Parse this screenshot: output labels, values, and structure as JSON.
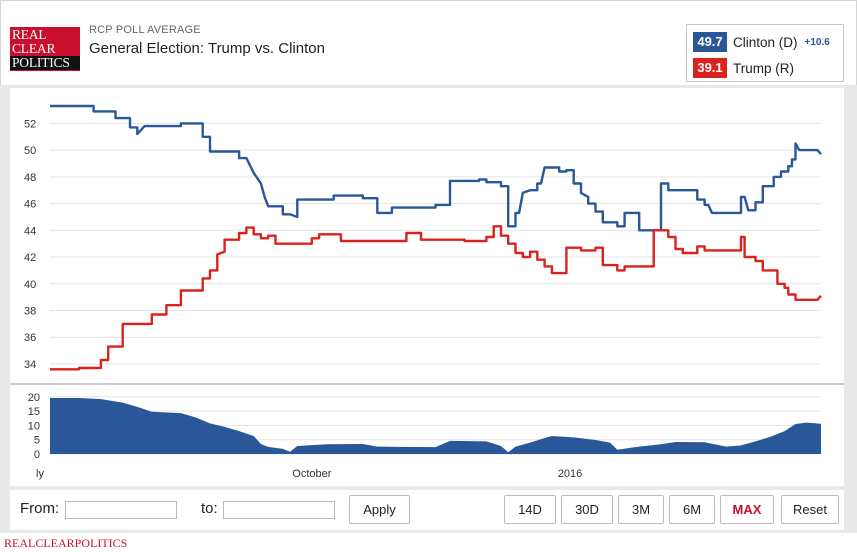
{
  "logo": {
    "line1": "REAL",
    "line2": "CLEAR",
    "line3": "POLITICS"
  },
  "header": {
    "kicker": "RCP POLL AVERAGE",
    "title": "General Election: Trump vs. Clinton"
  },
  "legend": {
    "clinton": {
      "value": "49.7",
      "name": "Clinton (D)",
      "spread": "+10.6",
      "color": "#2a5797"
    },
    "trump": {
      "value": "39.1",
      "name": "Trump (R)",
      "color": "#d9231c"
    }
  },
  "controls": {
    "from_label": "From:",
    "to_label": "to:",
    "from_value": "",
    "to_value": "",
    "apply_label": "Apply",
    "ranges": [
      "14D",
      "30D",
      "3M",
      "6M",
      "MAX"
    ],
    "active_range": "MAX",
    "reset_label": "Reset"
  },
  "footer": {
    "text": "REALCLEARPOLITICS"
  },
  "chart_data": {
    "type": "line",
    "upper": {
      "ylim": [
        32.8,
        54.2
      ],
      "yticks": [
        34,
        36,
        38,
        40,
        42,
        44,
        46,
        48,
        50,
        52
      ],
      "series": [
        {
          "name": "Clinton (D)",
          "color": "#2a5797",
          "points": [
            [
              0,
              53.3
            ],
            [
              6,
              53.3
            ],
            [
              6,
              52.9
            ],
            [
              9,
              52.9
            ],
            [
              9,
              52.4
            ],
            [
              11,
              52.4
            ],
            [
              11,
              51.7
            ],
            [
              12,
              51.7
            ],
            [
              12,
              51.2
            ],
            [
              13,
              51.8
            ],
            [
              18,
              51.8
            ],
            [
              18,
              52.0
            ],
            [
              21,
              52.0
            ],
            [
              21,
              51.0
            ],
            [
              22,
              51.0
            ],
            [
              22,
              49.9
            ],
            [
              26,
              49.9
            ],
            [
              26,
              49.4
            ],
            [
              27,
              49.4
            ],
            [
              28,
              48.3
            ],
            [
              29,
              47.5
            ],
            [
              29.5,
              46.5
            ],
            [
              30,
              45.8
            ],
            [
              32,
              45.8
            ],
            [
              32,
              45.2
            ],
            [
              33,
              45.2
            ],
            [
              34,
              45.0
            ],
            [
              34,
              46.3
            ],
            [
              39,
              46.3
            ],
            [
              39,
              46.6
            ],
            [
              43,
              46.6
            ],
            [
              43,
              46.4
            ],
            [
              45,
              46.4
            ],
            [
              45,
              45.3
            ],
            [
              47,
              45.3
            ],
            [
              47,
              45.7
            ],
            [
              53,
              45.7
            ],
            [
              53,
              45.9
            ],
            [
              55,
              45.9
            ],
            [
              55,
              47.7
            ],
            [
              59,
              47.7
            ],
            [
              59,
              47.8
            ],
            [
              60,
              47.8
            ],
            [
              60,
              47.6
            ],
            [
              62,
              47.6
            ],
            [
              62,
              47.3
            ],
            [
              63,
              47.3
            ],
            [
              63,
              44.3
            ],
            [
              64,
              44.3
            ],
            [
              64,
              45.3
            ],
            [
              64.5,
              45.3
            ],
            [
              65,
              46.8
            ],
            [
              66,
              47.0
            ],
            [
              67,
              47.0
            ],
            [
              67,
              47.5
            ],
            [
              67.5,
              47.5
            ],
            [
              68,
              48.7
            ],
            [
              70,
              48.7
            ],
            [
              70,
              48.4
            ],
            [
              71,
              48.4
            ],
            [
              71,
              48.5
            ],
            [
              72,
              48.5
            ],
            [
              72,
              47.5
            ],
            [
              73,
              47.5
            ],
            [
              73,
              46.8
            ],
            [
              74,
              46.5
            ],
            [
              74,
              46.0
            ],
            [
              75,
              46.0
            ],
            [
              75,
              45.4
            ],
            [
              76,
              45.4
            ],
            [
              76,
              44.6
            ],
            [
              78,
              44.6
            ],
            [
              78,
              44.3
            ],
            [
              79,
              44.3
            ],
            [
              79,
              45.3
            ],
            [
              81,
              45.3
            ],
            [
              81,
              44.0
            ],
            [
              84,
              44.0
            ],
            [
              84,
              47.5
            ],
            [
              85,
              47.5
            ],
            [
              85,
              47.0
            ],
            [
              89,
              47.0
            ],
            [
              89,
              46.3
            ],
            [
              90,
              46.3
            ],
            [
              90,
              45.9
            ],
            [
              90.5,
              45.9
            ],
            [
              91,
              45.3
            ],
            [
              95,
              45.3
            ],
            [
              95,
              46.5
            ],
            [
              95.5,
              46.5
            ],
            [
              96,
              45.5
            ],
            [
              97,
              45.5
            ],
            [
              97,
              46.1
            ],
            [
              98,
              46.1
            ],
            [
              98,
              47.3
            ],
            [
              99.5,
              47.3
            ],
            [
              99.5,
              48.0
            ],
            [
              100.5,
              48.0
            ],
            [
              100.5,
              48.4
            ],
            [
              101.5,
              48.4
            ],
            [
              101.5,
              48.8
            ],
            [
              102,
              48.8
            ],
            [
              102,
              49.3
            ],
            [
              102.5,
              49.3
            ],
            [
              102.5,
              50.5
            ],
            [
              103,
              50.0
            ],
            [
              105.5,
              50.0
            ],
            [
              106,
              49.7
            ]
          ]
        },
        {
          "name": "Trump (R)",
          "color": "#d9231c",
          "points": [
            [
              0,
              33.6
            ],
            [
              4,
              33.6
            ],
            [
              4,
              33.7
            ],
            [
              7,
              33.7
            ],
            [
              7,
              34.3
            ],
            [
              8,
              34.3
            ],
            [
              8,
              35.3
            ],
            [
              10,
              35.3
            ],
            [
              10,
              37.0
            ],
            [
              14,
              37.0
            ],
            [
              14,
              37.7
            ],
            [
              16,
              37.7
            ],
            [
              16,
              38.4
            ],
            [
              18,
              38.4
            ],
            [
              18,
              39.5
            ],
            [
              21,
              39.5
            ],
            [
              21,
              40.4
            ],
            [
              22,
              40.4
            ],
            [
              22,
              41.0
            ],
            [
              23,
              41.0
            ],
            [
              23,
              42.2
            ],
            [
              24,
              42.4
            ],
            [
              24,
              43.3
            ],
            [
              26,
              43.3
            ],
            [
              26,
              43.8
            ],
            [
              27,
              43.8
            ],
            [
              27,
              44.2
            ],
            [
              28,
              44.2
            ],
            [
              28,
              43.7
            ],
            [
              29,
              43.7
            ],
            [
              29,
              43.4
            ],
            [
              30,
              43.4
            ],
            [
              30,
              43.6
            ],
            [
              31,
              43.6
            ],
            [
              31,
              43.0
            ],
            [
              36,
              43.0
            ],
            [
              36,
              43.4
            ],
            [
              37,
              43.4
            ],
            [
              37,
              43.7
            ],
            [
              40,
              43.7
            ],
            [
              40,
              43.2
            ],
            [
              49,
              43.2
            ],
            [
              49,
              43.8
            ],
            [
              51,
              43.8
            ],
            [
              51,
              43.3
            ],
            [
              57,
              43.3
            ],
            [
              57,
              43.2
            ],
            [
              60,
              43.2
            ],
            [
              60,
              43.5
            ],
            [
              61,
              43.5
            ],
            [
              61,
              44.3
            ],
            [
              62,
              44.3
            ],
            [
              62,
              43.6
            ],
            [
              63,
              43.6
            ],
            [
              63,
              43.0
            ],
            [
              64,
              43.0
            ],
            [
              64,
              42.3
            ],
            [
              65,
              42.3
            ],
            [
              65,
              42.0
            ],
            [
              66,
              42.0
            ],
            [
              66,
              42.4
            ],
            [
              67,
              42.4
            ],
            [
              67,
              41.8
            ],
            [
              68,
              41.8
            ],
            [
              68,
              41.3
            ],
            [
              69,
              41.3
            ],
            [
              69,
              40.8
            ],
            [
              71,
              40.8
            ],
            [
              71,
              42.7
            ],
            [
              73,
              42.7
            ],
            [
              73,
              42.5
            ],
            [
              75,
              42.5
            ],
            [
              75,
              42.7
            ],
            [
              76,
              42.7
            ],
            [
              76,
              41.4
            ],
            [
              78,
              41.4
            ],
            [
              78,
              41.0
            ],
            [
              79,
              41.0
            ],
            [
              79,
              41.3
            ],
            [
              83,
              41.3
            ],
            [
              83,
              44.0
            ],
            [
              85,
              44.0
            ],
            [
              85,
              43.5
            ],
            [
              86,
              43.5
            ],
            [
              86,
              42.6
            ],
            [
              87,
              42.6
            ],
            [
              87,
              42.3
            ],
            [
              89,
              42.3
            ],
            [
              89,
              42.8
            ],
            [
              90,
              42.8
            ],
            [
              90,
              42.5
            ],
            [
              95,
              42.5
            ],
            [
              95,
              43.5
            ],
            [
              95.5,
              43.5
            ],
            [
              95.5,
              42.0
            ],
            [
              97,
              42.0
            ],
            [
              97,
              41.7
            ],
            [
              98,
              41.7
            ],
            [
              98,
              41.0
            ],
            [
              100,
              41.0
            ],
            [
              100,
              40.0
            ],
            [
              101,
              40.0
            ],
            [
              101,
              39.7
            ],
            [
              101.5,
              39.7
            ],
            [
              101.5,
              39.2
            ],
            [
              102.5,
              39.2
            ],
            [
              102.5,
              38.8
            ],
            [
              105.5,
              38.8
            ],
            [
              106,
              39.1
            ]
          ]
        }
      ]
    },
    "lower": {
      "ylim": [
        0,
        21
      ],
      "yticks": [
        0,
        5,
        10,
        15,
        20
      ],
      "series": [
        {
          "name": "spread",
          "color": "#2a5797",
          "points": [
            [
              0,
              19.6
            ],
            [
              4,
              19.6
            ],
            [
              7,
              19.2
            ],
            [
              10,
              18.0
            ],
            [
              12,
              16.5
            ],
            [
              14,
              14.8
            ],
            [
              18,
              14.3
            ],
            [
              20,
              12.8
            ],
            [
              22,
              10.7
            ],
            [
              24,
              9.5
            ],
            [
              26,
              8.0
            ],
            [
              28,
              6.3
            ],
            [
              29,
              3.5
            ],
            [
              30,
              2.5
            ],
            [
              32,
              1.8
            ],
            [
              33,
              0.8
            ],
            [
              34,
              2.8
            ],
            [
              38,
              3.4
            ],
            [
              43,
              3.5
            ],
            [
              45,
              2.6
            ],
            [
              48,
              2.5
            ],
            [
              53,
              2.4
            ],
            [
              55,
              4.6
            ],
            [
              60,
              4.4
            ],
            [
              62,
              2.8
            ],
            [
              63,
              0.6
            ],
            [
              64,
              2.6
            ],
            [
              66,
              4.0
            ],
            [
              68,
              5.6
            ],
            [
              69,
              6.3
            ],
            [
              72,
              5.8
            ],
            [
              75,
              4.9
            ],
            [
              77,
              4.0
            ],
            [
              78,
              1.5
            ],
            [
              81,
              2.6
            ],
            [
              84,
              3.4
            ],
            [
              86,
              4.2
            ],
            [
              90,
              4.1
            ],
            [
              93,
              2.6
            ],
            [
              95,
              3.0
            ],
            [
              97,
              4.4
            ],
            [
              99,
              6.0
            ],
            [
              101,
              8.0
            ],
            [
              102.5,
              10.5
            ],
            [
              104,
              11.0
            ],
            [
              106,
              10.6
            ]
          ]
        }
      ]
    },
    "xlim": [
      0,
      106
    ],
    "x_ticks": [
      {
        "label": "ly",
        "x": 0
      },
      {
        "label": "October",
        "x": 36
      },
      {
        "label": "2016",
        "x": 71.5
      }
    ]
  }
}
